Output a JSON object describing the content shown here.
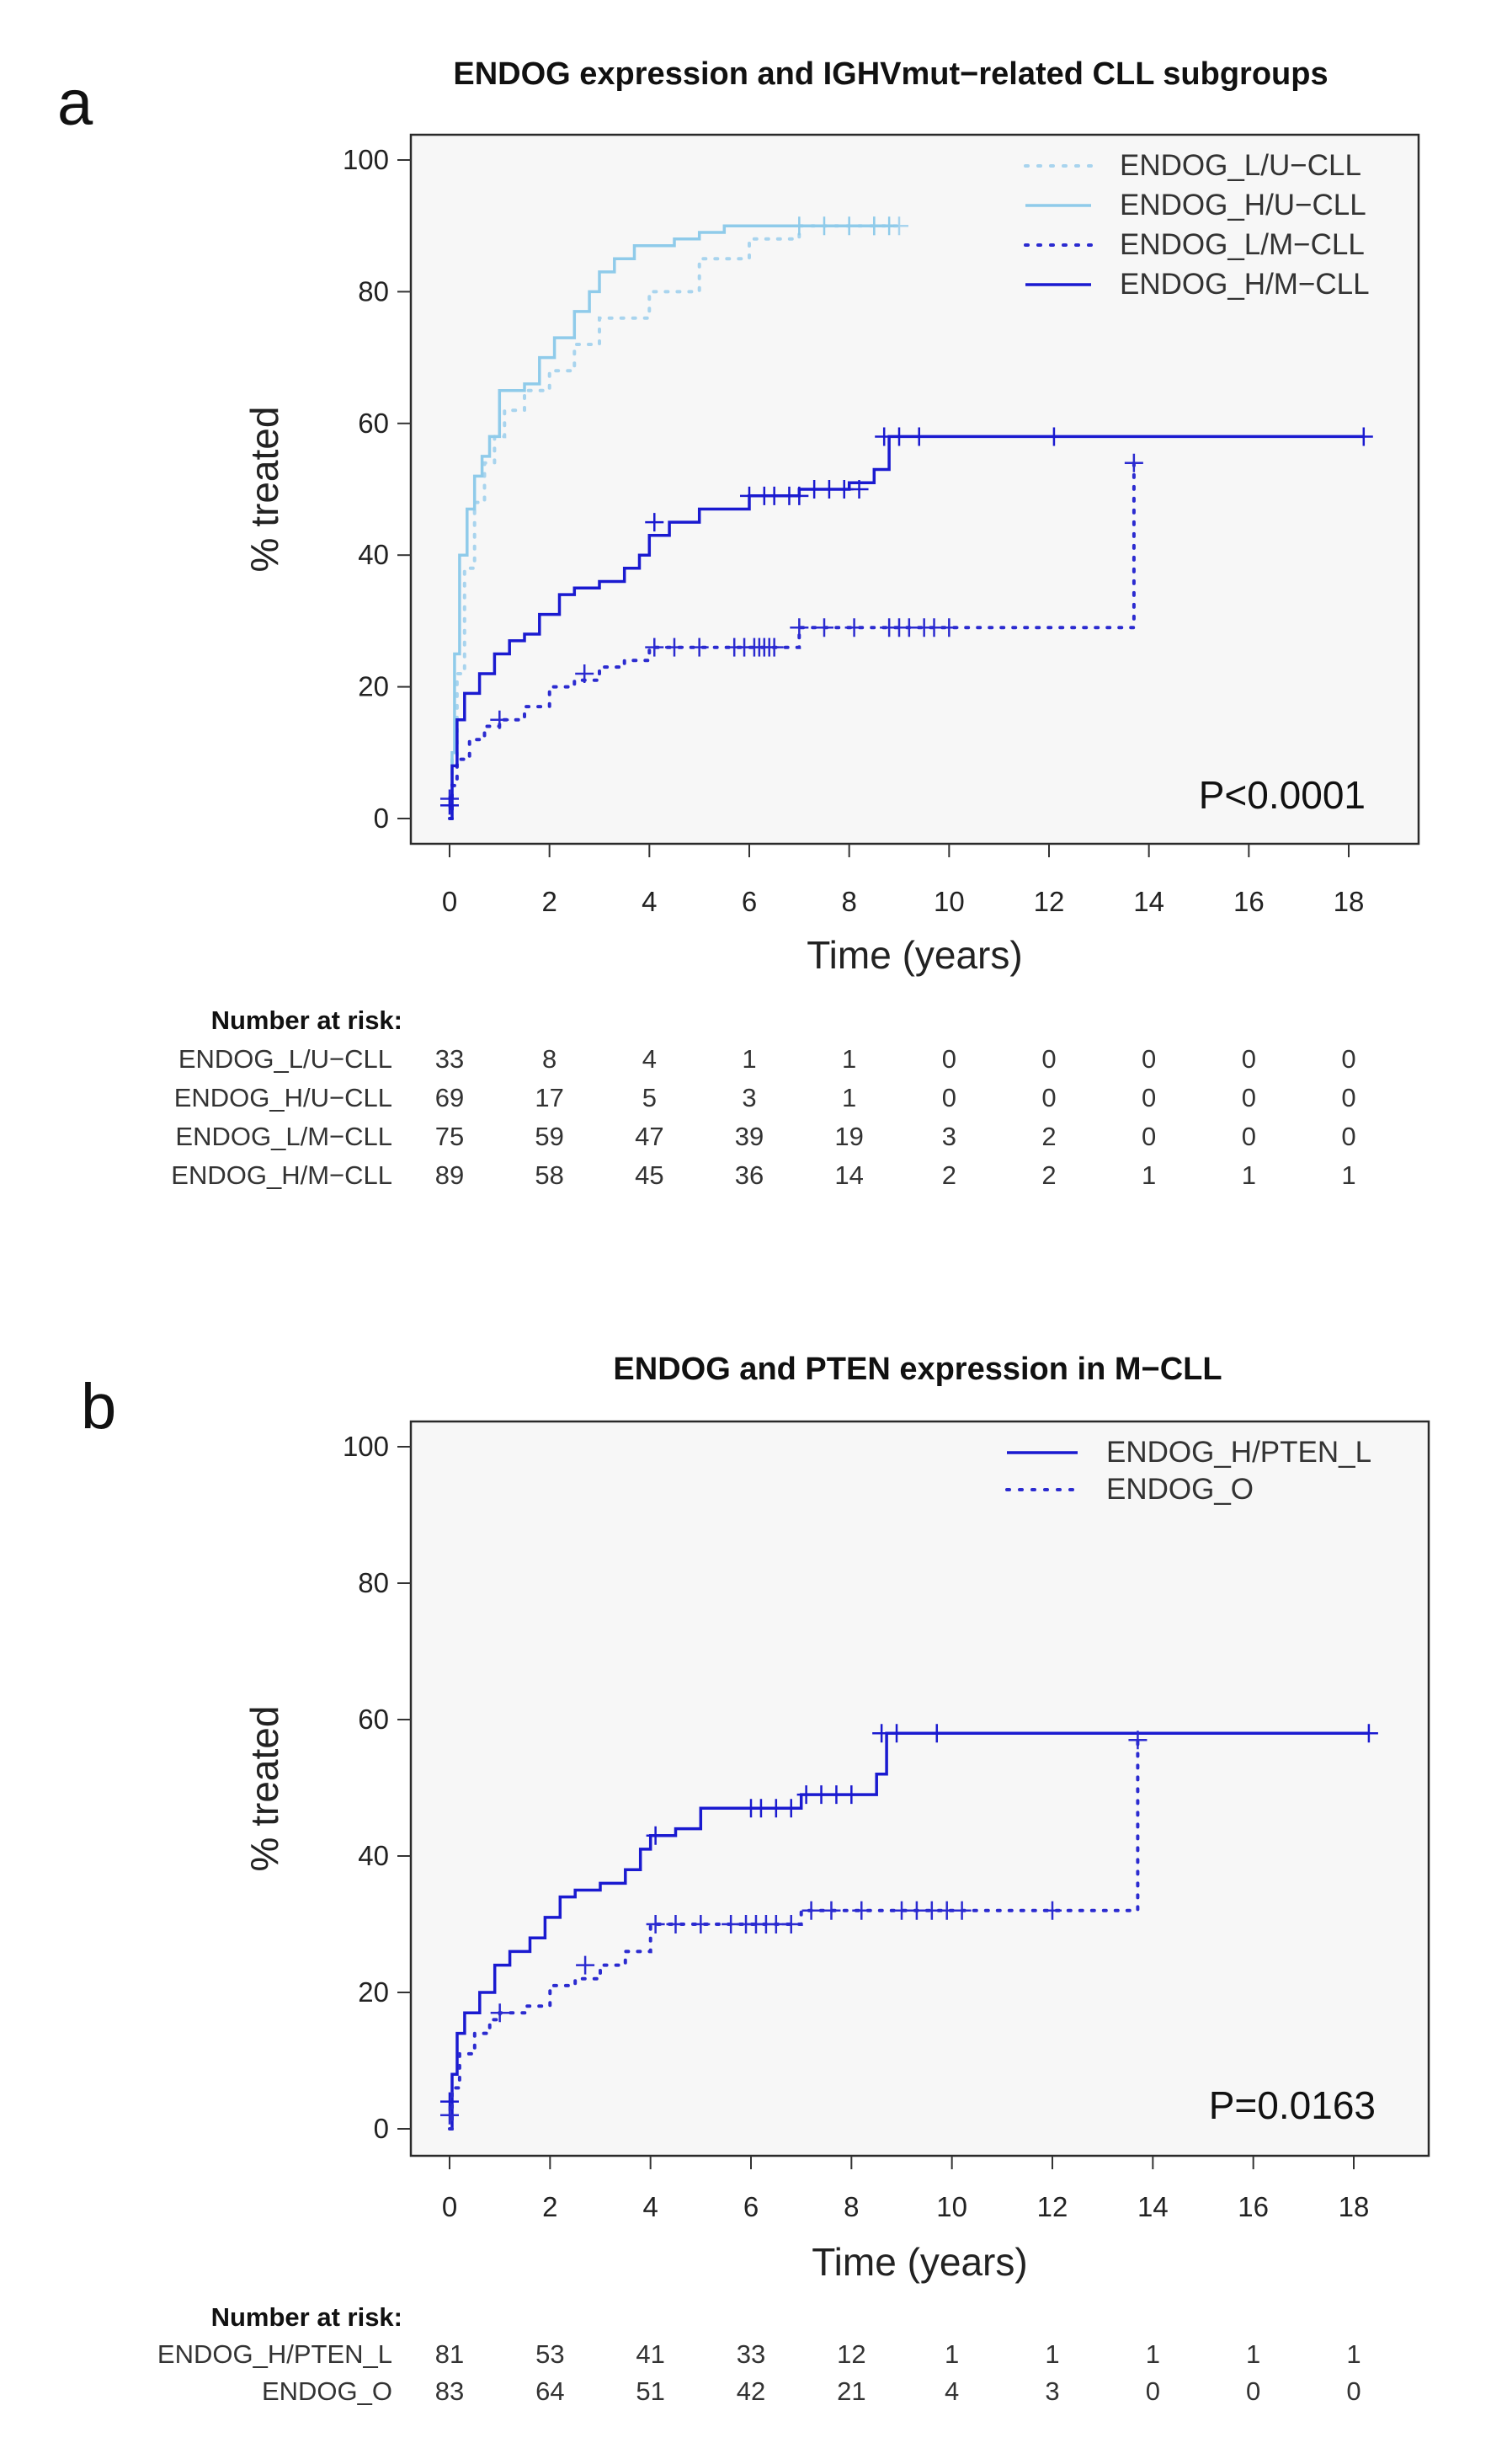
{
  "chart_data": [
    {
      "panel": "a",
      "type": "line",
      "subtype": "kaplan-meier step curves",
      "title": "ENDOG expression and IGHVmut−related CLL subgroups",
      "xlabel": "Time (years)",
      "ylabel": "% treated",
      "xlim": [
        0,
        18
      ],
      "ylim": [
        0,
        100
      ],
      "xticks": [
        0,
        2,
        4,
        6,
        8,
        10,
        12,
        14,
        16,
        18
      ],
      "yticks": [
        0,
        20,
        40,
        60,
        80,
        100
      ],
      "legend_position": "top-right",
      "p_value": "P<0.0001",
      "series": [
        {
          "name": "ENDOG_L/U−CLL",
          "color": "#a8d4ee",
          "style": "dotted",
          "points": [
            [
              0,
              0
            ],
            [
              0.05,
              9
            ],
            [
              0.15,
              22
            ],
            [
              0.3,
              38
            ],
            [
              0.5,
              48
            ],
            [
              0.7,
              54
            ],
            [
              0.9,
              58
            ],
            [
              1.1,
              62
            ],
            [
              1.5,
              65
            ],
            [
              2.0,
              68
            ],
            [
              2.5,
              72
            ],
            [
              3.0,
              76
            ],
            [
              4.0,
              80
            ],
            [
              5.0,
              85
            ],
            [
              6.0,
              88
            ],
            [
              7.0,
              90
            ],
            [
              9.0,
              90
            ]
          ],
          "censor": [
            [
              8.5,
              90
            ],
            [
              9.0,
              90
            ]
          ]
        },
        {
          "name": "ENDOG_H/U−CLL",
          "color": "#8fcbea",
          "style": "solid",
          "points": [
            [
              0,
              0
            ],
            [
              0.05,
              10
            ],
            [
              0.1,
              25
            ],
            [
              0.2,
              40
            ],
            [
              0.35,
              47
            ],
            [
              0.5,
              52
            ],
            [
              0.65,
              55
            ],
            [
              0.8,
              58
            ],
            [
              1.0,
              65
            ],
            [
              1.5,
              66
            ],
            [
              1.8,
              70
            ],
            [
              2.1,
              73
            ],
            [
              2.5,
              77
            ],
            [
              2.8,
              80
            ],
            [
              3.0,
              83
            ],
            [
              3.3,
              85
            ],
            [
              3.7,
              87
            ],
            [
              4.5,
              88
            ],
            [
              5.0,
              89
            ],
            [
              5.5,
              90
            ],
            [
              8.9,
              90
            ]
          ],
          "censor": [
            [
              7.0,
              90
            ],
            [
              7.5,
              90
            ],
            [
              8.0,
              90
            ],
            [
              8.5,
              90
            ],
            [
              8.8,
              90
            ]
          ]
        },
        {
          "name": "ENDOG_L/M−CLL",
          "color": "#2b2bd0",
          "style": "dotted",
          "points": [
            [
              0,
              0
            ],
            [
              0.05,
              5
            ],
            [
              0.15,
              9
            ],
            [
              0.4,
              12
            ],
            [
              0.7,
              14
            ],
            [
              1.0,
              15
            ],
            [
              1.5,
              17
            ],
            [
              2.0,
              20
            ],
            [
              2.5,
              21
            ],
            [
              3.0,
              23
            ],
            [
              3.5,
              24
            ],
            [
              4.0,
              26
            ],
            [
              6.5,
              26
            ],
            [
              7.0,
              29
            ],
            [
              13.6,
              29
            ],
            [
              13.7,
              54
            ]
          ],
          "censor": [
            [
              0,
              3
            ],
            [
              1.0,
              15
            ],
            [
              2.7,
              22
            ],
            [
              4.1,
              26
            ],
            [
              4.5,
              26
            ],
            [
              5.0,
              26
            ],
            [
              5.7,
              26
            ],
            [
              5.9,
              26
            ],
            [
              6.1,
              26
            ],
            [
              6.2,
              26
            ],
            [
              6.3,
              26
            ],
            [
              6.4,
              26
            ],
            [
              6.5,
              26
            ],
            [
              7.0,
              29
            ],
            [
              7.5,
              29
            ],
            [
              8.1,
              29
            ],
            [
              8.8,
              29
            ],
            [
              9.0,
              29
            ],
            [
              9.2,
              29
            ],
            [
              9.5,
              29
            ],
            [
              9.7,
              29
            ],
            [
              10.0,
              29
            ],
            [
              13.7,
              54
            ]
          ]
        },
        {
          "name": "ENDOG_H/M−CLL",
          "color": "#1a1ad0",
          "style": "solid",
          "points": [
            [
              0,
              0
            ],
            [
              0.05,
              8
            ],
            [
              0.15,
              15
            ],
            [
              0.3,
              19
            ],
            [
              0.6,
              22
            ],
            [
              0.9,
              25
            ],
            [
              1.2,
              27
            ],
            [
              1.5,
              28
            ],
            [
              1.8,
              31
            ],
            [
              2.2,
              34
            ],
            [
              2.5,
              35
            ],
            [
              3.0,
              36
            ],
            [
              3.5,
              38
            ],
            [
              3.8,
              40
            ],
            [
              4.0,
              43
            ],
            [
              4.4,
              45
            ],
            [
              5.0,
              47
            ],
            [
              6.0,
              49
            ],
            [
              7.0,
              50
            ],
            [
              8.0,
              51
            ],
            [
              8.5,
              53
            ],
            [
              8.8,
              58
            ],
            [
              18.3,
              58
            ]
          ],
          "censor": [
            [
              0,
              2
            ],
            [
              4.1,
              45
            ],
            [
              6.0,
              49
            ],
            [
              6.3,
              49
            ],
            [
              6.5,
              49
            ],
            [
              6.8,
              49
            ],
            [
              7.0,
              49
            ],
            [
              7.3,
              50
            ],
            [
              7.6,
              50
            ],
            [
              7.9,
              50
            ],
            [
              8.2,
              50
            ],
            [
              8.7,
              58
            ],
            [
              9.0,
              58
            ],
            [
              9.4,
              58
            ],
            [
              12.1,
              58
            ],
            [
              18.3,
              58
            ]
          ]
        }
      ],
      "risk_table": {
        "header": "Number at risk:",
        "times": [
          0,
          2,
          4,
          6,
          8,
          10,
          12,
          14,
          16,
          18
        ],
        "rows": [
          {
            "name": "ENDOG_L/U−CLL",
            "values": [
              33,
              8,
              4,
              1,
              1,
              0,
              0,
              0,
              0,
              0
            ]
          },
          {
            "name": "ENDOG_H/U−CLL",
            "values": [
              69,
              17,
              5,
              3,
              1,
              0,
              0,
              0,
              0,
              0
            ]
          },
          {
            "name": "ENDOG_L/M−CLL",
            "values": [
              75,
              59,
              47,
              39,
              19,
              3,
              2,
              0,
              0,
              0
            ]
          },
          {
            "name": "ENDOG_H/M−CLL",
            "values": [
              89,
              58,
              45,
              36,
              14,
              2,
              2,
              1,
              1,
              1
            ]
          }
        ]
      }
    },
    {
      "panel": "b",
      "type": "line",
      "subtype": "kaplan-meier step curves",
      "title": "ENDOG and PTEN expression in M−CLL",
      "xlabel": "Time (years)",
      "ylabel": "% treated",
      "xlim": [
        0,
        18
      ],
      "ylim": [
        0,
        100
      ],
      "xticks": [
        0,
        2,
        4,
        6,
        8,
        10,
        12,
        14,
        16,
        18
      ],
      "yticks": [
        0,
        20,
        40,
        60,
        80,
        100
      ],
      "legend_position": "top-right",
      "p_value": "P=0.0163",
      "series": [
        {
          "name": "ENDOG_H/PTEN_L",
          "color": "#1a1ad0",
          "style": "solid",
          "points": [
            [
              0,
              0
            ],
            [
              0.05,
              8
            ],
            [
              0.15,
              14
            ],
            [
              0.3,
              17
            ],
            [
              0.6,
              20
            ],
            [
              0.9,
              24
            ],
            [
              1.2,
              26
            ],
            [
              1.6,
              28
            ],
            [
              1.9,
              31
            ],
            [
              2.2,
              34
            ],
            [
              2.5,
              35
            ],
            [
              3.0,
              36
            ],
            [
              3.5,
              38
            ],
            [
              3.8,
              41
            ],
            [
              4.0,
              43
            ],
            [
              4.5,
              44
            ],
            [
              5.0,
              47
            ],
            [
              6.0,
              47
            ],
            [
              7.0,
              49
            ],
            [
              8.0,
              49
            ],
            [
              8.5,
              52
            ],
            [
              8.7,
              58
            ],
            [
              18.3,
              58
            ]
          ],
          "censor": [
            [
              0,
              4
            ],
            [
              4.1,
              43
            ],
            [
              6.0,
              47
            ],
            [
              6.2,
              47
            ],
            [
              6.5,
              47
            ],
            [
              6.8,
              47
            ],
            [
              7.1,
              49
            ],
            [
              7.4,
              49
            ],
            [
              7.7,
              49
            ],
            [
              8.0,
              49
            ],
            [
              8.6,
              58
            ],
            [
              8.9,
              58
            ],
            [
              9.7,
              58
            ],
            [
              18.3,
              58
            ]
          ]
        },
        {
          "name": "ENDOG_O",
          "color": "#2b2bd0",
          "style": "dotted",
          "points": [
            [
              0,
              0
            ],
            [
              0.05,
              6
            ],
            [
              0.2,
              11
            ],
            [
              0.5,
              14
            ],
            [
              0.8,
              16
            ],
            [
              1.0,
              17
            ],
            [
              1.5,
              18
            ],
            [
              2.0,
              21
            ],
            [
              2.5,
              22
            ],
            [
              3.0,
              24
            ],
            [
              3.5,
              26
            ],
            [
              4.0,
              30
            ],
            [
              6.8,
              30
            ],
            [
              7.0,
              32
            ],
            [
              13.6,
              32
            ],
            [
              13.7,
              57
            ]
          ],
          "censor": [
            [
              0,
              2
            ],
            [
              1.0,
              17
            ],
            [
              2.7,
              24
            ],
            [
              4.1,
              30
            ],
            [
              4.5,
              30
            ],
            [
              5.0,
              30
            ],
            [
              5.6,
              30
            ],
            [
              5.9,
              30
            ],
            [
              6.1,
              30
            ],
            [
              6.3,
              30
            ],
            [
              6.5,
              30
            ],
            [
              6.8,
              30
            ],
            [
              7.2,
              32
            ],
            [
              7.6,
              32
            ],
            [
              8.2,
              32
            ],
            [
              9.0,
              32
            ],
            [
              9.3,
              32
            ],
            [
              9.6,
              32
            ],
            [
              9.9,
              32
            ],
            [
              10.2,
              32
            ],
            [
              12.0,
              32
            ],
            [
              13.7,
              57
            ]
          ]
        }
      ],
      "risk_table": {
        "header": "Number at risk:",
        "times": [
          0,
          2,
          4,
          6,
          8,
          10,
          12,
          14,
          16,
          18
        ],
        "rows": [
          {
            "name": "ENDOG_H/PTEN_L",
            "values": [
              81,
              53,
              41,
              33,
              12,
              1,
              1,
              1,
              1,
              1
            ]
          },
          {
            "name": "ENDOG_O",
            "values": [
              83,
              64,
              51,
              42,
              21,
              4,
              3,
              0,
              0,
              0
            ]
          }
        ]
      }
    }
  ]
}
